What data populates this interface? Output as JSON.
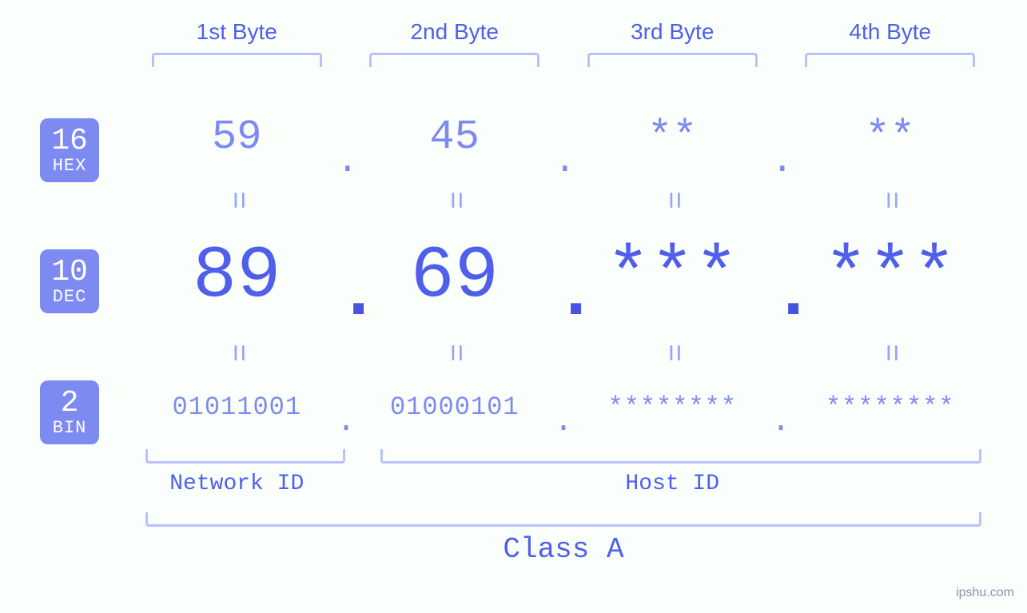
{
  "colors": {
    "background": "#fafffc",
    "primary": "#4f5feb",
    "secondary": "#7d8af2",
    "light": "#b9c2f8",
    "eq": "#9aa6f5",
    "badge_bg": "#7d8af2",
    "badge_fg": "#ffffff"
  },
  "typography": {
    "font_family": "Courier New, monospace",
    "byte_label_fontsize": 28,
    "hex_fontsize": 52,
    "dec_fontsize": 92,
    "bin_fontsize": 32,
    "class_fontsize": 36,
    "badge_num_fontsize": 38,
    "badge_lbl_fontsize": 22
  },
  "badges": {
    "hex": {
      "num": "16",
      "lbl": "HEX"
    },
    "dec": {
      "num": "10",
      "lbl": "DEC"
    },
    "bin": {
      "num": "2",
      "lbl": "BIN"
    }
  },
  "byte_labels": [
    "1st Byte",
    "2nd Byte",
    "3rd Byte",
    "4th Byte"
  ],
  "hex": [
    "59",
    "45",
    "**",
    "**"
  ],
  "dec": [
    "89",
    "69",
    "***",
    "***"
  ],
  "bin": [
    "01011001",
    "01000101",
    "********",
    "********"
  ],
  "dot": ".",
  "eq": "=",
  "netid_label": "Network ID",
  "hostid_label": "Host ID",
  "class_label": "Class A",
  "netid_span_bytes": 1,
  "hostid_span_bytes": 3,
  "watermark": "ipshu.com"
}
